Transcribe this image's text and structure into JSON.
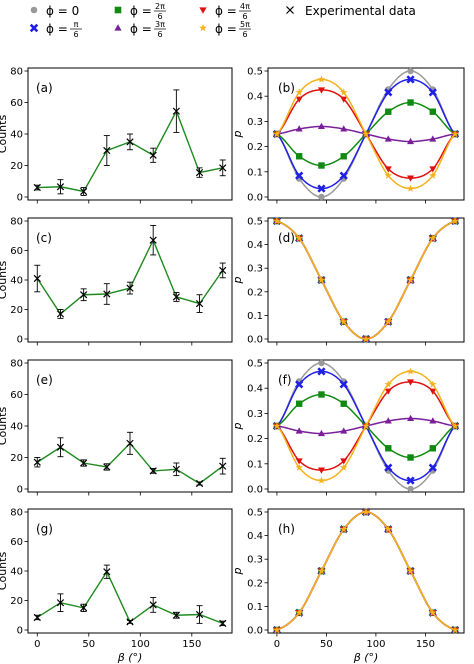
{
  "legend": {
    "items": [
      {
        "label": "ϕ = 0",
        "color": "#9a9a9a",
        "marker": "circle"
      },
      {
        "label": "ϕ = π/6",
        "color": "#1f1fe6",
        "marker": "x-filled"
      },
      {
        "label": "ϕ = 2π/6",
        "color": "#118a11",
        "marker": "square"
      },
      {
        "label": "ϕ = 3π/6",
        "color": "#7a1f9a",
        "marker": "triangle-up"
      },
      {
        "label": "ϕ = 4π/6",
        "color": "#e01010",
        "marker": "triangle-down"
      },
      {
        "label": "ϕ = 5π/6",
        "color": "#f5b21a",
        "marker": "star"
      }
    ],
    "experimental_label": "Experimental data"
  },
  "chart_data": [
    {
      "type": "line",
      "panel": "(a)",
      "xlabel": "",
      "ylabel": "Counts",
      "ylim": [
        0,
        80
      ],
      "yticks": [
        0,
        20,
        40,
        60,
        80
      ],
      "xticks": [
        0,
        50,
        100,
        150
      ],
      "x": [
        0,
        22.5,
        45,
        67.5,
        90,
        112.5,
        135,
        157.5,
        180
      ],
      "series": [
        {
          "values": [
            6,
            6.5,
            3.5,
            29.5,
            35,
            26.5,
            54.5,
            15.5,
            18.5
          ],
          "errors": [
            1.5,
            4.5,
            2.5,
            9.5,
            5,
            4.5,
            13.5,
            3,
            5
          ],
          "color": "#1e8a1e"
        }
      ]
    },
    {
      "type": "line",
      "panel": "(b)",
      "xlabel": "",
      "ylabel": "p",
      "ylim": [
        0,
        0.5
      ],
      "yticks": [
        0.0,
        0.1,
        0.2,
        0.3,
        0.4,
        0.5
      ],
      "xticks": [
        0,
        50,
        100,
        150
      ],
      "x": [
        0,
        22.5,
        45,
        67.5,
        90,
        112.5,
        135,
        157.5,
        180
      ],
      "series": [
        {
          "values": [
            0.25,
            0.0732,
            0.0,
            0.0732,
            0.25,
            0.4268,
            0.5,
            0.4268,
            0.25
          ],
          "color": "#9a9a9a",
          "marker": "circle"
        },
        {
          "values": [
            0.25,
            0.0849,
            0.0335,
            0.0849,
            0.25,
            0.4151,
            0.4665,
            0.4151,
            0.25
          ],
          "color": "#1f1fe6",
          "marker": "x-filled"
        },
        {
          "values": [
            0.25,
            0.1616,
            0.125,
            0.1616,
            0.25,
            0.3384,
            0.375,
            0.3384,
            0.25
          ],
          "color": "#118a11",
          "marker": "square"
        },
        {
          "values": [
            0.25,
            0.27,
            0.28,
            0.27,
            0.25,
            0.23,
            0.22,
            0.23,
            0.25
          ],
          "color": "#7a1f9a",
          "marker": "triangle-up"
        },
        {
          "values": [
            0.25,
            0.3884,
            0.425,
            0.3884,
            0.25,
            0.1116,
            0.075,
            0.1116,
            0.25
          ],
          "color": "#e01010",
          "marker": "triangle-down"
        },
        {
          "values": [
            0.25,
            0.4151,
            0.4665,
            0.4151,
            0.25,
            0.0849,
            0.0335,
            0.0849,
            0.25
          ],
          "color": "#f5b21a",
          "marker": "star"
        }
      ]
    },
    {
      "type": "line",
      "panel": "(c)",
      "xlabel": "",
      "ylabel": "Counts",
      "ylim": [
        0,
        80
      ],
      "yticks": [
        0,
        20,
        40,
        60,
        80
      ],
      "xticks": [
        0,
        50,
        100,
        150
      ],
      "x": [
        0,
        22.5,
        45,
        67.5,
        90,
        112.5,
        135,
        157.5,
        180
      ],
      "series": [
        {
          "values": [
            41,
            17,
            30,
            30.5,
            34.5,
            67,
            28.5,
            24,
            46.5
          ],
          "errors": [
            9,
            3,
            4,
            7,
            4,
            10,
            3,
            6,
            5
          ],
          "color": "#1e8a1e"
        }
      ]
    },
    {
      "type": "line",
      "panel": "(d)",
      "xlabel": "",
      "ylabel": "p",
      "ylim": [
        0,
        0.5
      ],
      "yticks": [
        0.0,
        0.1,
        0.2,
        0.3,
        0.4,
        0.5
      ],
      "xticks": [
        0,
        50,
        100,
        150
      ],
      "x": [
        0,
        22.5,
        45,
        67.5,
        90,
        112.5,
        135,
        157.5,
        180
      ],
      "series": [
        {
          "values": [
            0.5,
            0.4268,
            0.25,
            0.0732,
            0.0,
            0.0732,
            0.25,
            0.4268,
            0.5
          ],
          "color": "#9a9a9a",
          "marker": "circle"
        },
        {
          "values": [
            0.5,
            0.4268,
            0.25,
            0.0732,
            0.0,
            0.0732,
            0.25,
            0.4268,
            0.5
          ],
          "color": "#1f1fe6",
          "marker": "x-filled"
        },
        {
          "values": [
            0.5,
            0.4268,
            0.25,
            0.0732,
            0.0,
            0.0732,
            0.25,
            0.4268,
            0.5
          ],
          "color": "#118a11",
          "marker": "square"
        },
        {
          "values": [
            0.5,
            0.4268,
            0.25,
            0.0732,
            0.0,
            0.0732,
            0.25,
            0.4268,
            0.5
          ],
          "color": "#7a1f9a",
          "marker": "triangle-up"
        },
        {
          "values": [
            0.5,
            0.4268,
            0.25,
            0.0732,
            0.0,
            0.0732,
            0.25,
            0.4268,
            0.5
          ],
          "color": "#e01010",
          "marker": "triangle-down"
        },
        {
          "values": [
            0.5,
            0.4268,
            0.25,
            0.0732,
            0.0,
            0.0732,
            0.25,
            0.4268,
            0.5
          ],
          "color": "#f5b21a",
          "marker": "star"
        }
      ]
    },
    {
      "type": "line",
      "panel": "(e)",
      "xlabel": "",
      "ylabel": "Counts",
      "ylim": [
        0,
        80
      ],
      "yticks": [
        0,
        20,
        40,
        60,
        80
      ],
      "xticks": [
        0,
        50,
        100,
        150
      ],
      "x": [
        0,
        22.5,
        45,
        67.5,
        90,
        112.5,
        135,
        157.5,
        180
      ],
      "series": [
        {
          "values": [
            17,
            26.5,
            16.5,
            14,
            29,
            11.5,
            12.5,
            3.5,
            14.5
          ],
          "errors": [
            3,
            6,
            2,
            2,
            7,
            1.5,
            4,
            1,
            5
          ],
          "color": "#1e8a1e"
        }
      ]
    },
    {
      "type": "line",
      "panel": "(f)",
      "xlabel": "",
      "ylabel": "p",
      "ylim": [
        0,
        0.5
      ],
      "yticks": [
        0.0,
        0.1,
        0.2,
        0.3,
        0.4,
        0.5
      ],
      "xticks": [
        0,
        50,
        100,
        150
      ],
      "x": [
        0,
        22.5,
        45,
        67.5,
        90,
        112.5,
        135,
        157.5,
        180
      ],
      "series": [
        {
          "values": [
            0.25,
            0.4268,
            0.5,
            0.4268,
            0.25,
            0.0732,
            0.0,
            0.0732,
            0.25
          ],
          "color": "#9a9a9a",
          "marker": "circle"
        },
        {
          "values": [
            0.25,
            0.4151,
            0.4665,
            0.4151,
            0.25,
            0.0849,
            0.0335,
            0.0849,
            0.25
          ],
          "color": "#1f1fe6",
          "marker": "x-filled"
        },
        {
          "values": [
            0.25,
            0.3384,
            0.375,
            0.3384,
            0.25,
            0.1616,
            0.125,
            0.1616,
            0.25
          ],
          "color": "#118a11",
          "marker": "square"
        },
        {
          "values": [
            0.25,
            0.23,
            0.22,
            0.23,
            0.25,
            0.27,
            0.28,
            0.27,
            0.25
          ],
          "color": "#7a1f9a",
          "marker": "triangle-up"
        },
        {
          "values": [
            0.25,
            0.1116,
            0.075,
            0.1116,
            0.25,
            0.3884,
            0.425,
            0.3884,
            0.25
          ],
          "color": "#e01010",
          "marker": "triangle-down"
        },
        {
          "values": [
            0.25,
            0.0849,
            0.0335,
            0.0849,
            0.25,
            0.4151,
            0.4665,
            0.4151,
            0.25
          ],
          "color": "#f5b21a",
          "marker": "star"
        }
      ]
    },
    {
      "type": "line",
      "panel": "(g)",
      "xlabel": "β (°)",
      "ylabel": "Counts",
      "ylim": [
        0,
        80
      ],
      "yticks": [
        0,
        20,
        40,
        60,
        80
      ],
      "xticks": [
        0,
        50,
        100,
        150
      ],
      "x": [
        0,
        22.5,
        45,
        67.5,
        90,
        112.5,
        135,
        157.5,
        180
      ],
      "series": [
        {
          "values": [
            8.5,
            18.5,
            15,
            39.5,
            5.5,
            17,
            10,
            10.5,
            4.5
          ],
          "errors": [
            1.5,
            6,
            2.5,
            4.5,
            1,
            5,
            2,
            6,
            1.5
          ],
          "color": "#1e8a1e"
        }
      ]
    },
    {
      "type": "line",
      "panel": "(h)",
      "xlabel": "β (°)",
      "ylabel": "p",
      "ylim": [
        0,
        0.5
      ],
      "yticks": [
        0.0,
        0.1,
        0.2,
        0.3,
        0.4,
        0.5
      ],
      "xticks": [
        0,
        50,
        100,
        150
      ],
      "x": [
        0,
        22.5,
        45,
        67.5,
        90,
        112.5,
        135,
        157.5,
        180
      ],
      "series": [
        {
          "values": [
            0.0,
            0.0732,
            0.25,
            0.4268,
            0.5,
            0.4268,
            0.25,
            0.0732,
            0.0
          ],
          "color": "#9a9a9a",
          "marker": "circle"
        },
        {
          "values": [
            0.0,
            0.0732,
            0.25,
            0.4268,
            0.5,
            0.4268,
            0.25,
            0.0732,
            0.0
          ],
          "color": "#1f1fe6",
          "marker": "x-filled"
        },
        {
          "values": [
            0.0,
            0.0732,
            0.25,
            0.4268,
            0.5,
            0.4268,
            0.25,
            0.0732,
            0.0
          ],
          "color": "#118a11",
          "marker": "square"
        },
        {
          "values": [
            0.0,
            0.0732,
            0.25,
            0.4268,
            0.5,
            0.4268,
            0.25,
            0.0732,
            0.0
          ],
          "color": "#7a1f9a",
          "marker": "triangle-up"
        },
        {
          "values": [
            0.0,
            0.0732,
            0.25,
            0.4268,
            0.5,
            0.4268,
            0.25,
            0.0732,
            0.0
          ],
          "color": "#e01010",
          "marker": "triangle-down"
        },
        {
          "values": [
            0.0,
            0.0732,
            0.25,
            0.4268,
            0.5,
            0.4268,
            0.25,
            0.0732,
            0.0
          ],
          "color": "#f5b21a",
          "marker": "star"
        }
      ]
    }
  ]
}
